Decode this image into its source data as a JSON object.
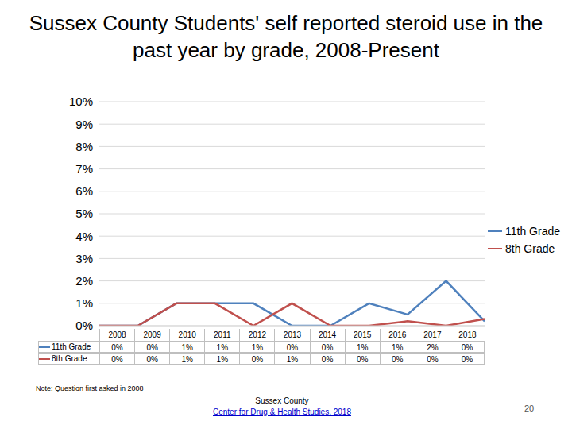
{
  "chart_data": {
    "type": "line",
    "title": "Sussex County Students' self reported steroid use in the past year by grade, 2008-Present",
    "categories": [
      "2008",
      "2009",
      "2010",
      "2011",
      "2012",
      "2013",
      "2014",
      "2015",
      "2016",
      "2017",
      "2018"
    ],
    "series": [
      {
        "name": "11th Grade",
        "color": "#4f81bd",
        "values": [
          0,
          0,
          1,
          1,
          1,
          0,
          0,
          1,
          0.5,
          2,
          0.2
        ],
        "value_labels": [
          "0%",
          "0%",
          "1%",
          "1%",
          "1%",
          "0%",
          "0%",
          "1%",
          "1%",
          "2%",
          "0%"
        ]
      },
      {
        "name": "8th Grade",
        "color": "#c0504d",
        "values": [
          0,
          0,
          1,
          1,
          0,
          1,
          0,
          0,
          0.2,
          0,
          0.3
        ],
        "value_labels": [
          "0%",
          "0%",
          "1%",
          "1%",
          "0%",
          "1%",
          "0%",
          "0%",
          "0%",
          "0%",
          "0%"
        ]
      }
    ],
    "ylim": [
      0,
      10
    ],
    "yticks": [
      {
        "value": 0,
        "label": "0%"
      },
      {
        "value": 1,
        "label": "1%"
      },
      {
        "value": 2,
        "label": "2%"
      },
      {
        "value": 3,
        "label": "3%"
      },
      {
        "value": 4,
        "label": "4%"
      },
      {
        "value": 5,
        "label": "5%"
      },
      {
        "value": 6,
        "label": "6%"
      },
      {
        "value": 7,
        "label": "7%"
      },
      {
        "value": 8,
        "label": "8%"
      },
      {
        "value": 9,
        "label": "9%"
      },
      {
        "value": 10,
        "label": "10%"
      }
    ],
    "grid": true,
    "legend": "right",
    "annotations": [
      "Note: Question first asked in 2008"
    ]
  },
  "footer": {
    "source": [
      "Sussex County",
      "Center for Drug & Health Studies, 2018"
    ],
    "page": "20"
  }
}
